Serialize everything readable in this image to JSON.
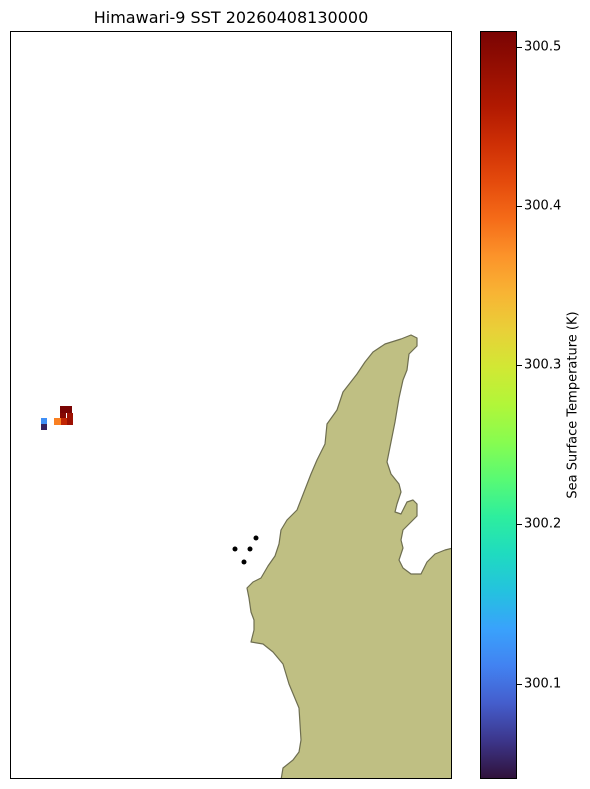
{
  "title": "Himawari-9 SST 20260408130000",
  "colors": {
    "land": "#bfbf83",
    "coastline": "#6e6e50",
    "station": "#000000",
    "frame": "#000000"
  },
  "colorbar": {
    "label": "Sea Surface Temperature (K)",
    "colormap": "turbo",
    "range": [
      300.04,
      300.51
    ],
    "ticks": [
      {
        "value": 300.1,
        "label": "300.1"
      },
      {
        "value": 300.2,
        "label": "300.2"
      },
      {
        "value": 300.3,
        "label": "300.3"
      },
      {
        "value": 300.4,
        "label": "300.4"
      },
      {
        "value": 300.5,
        "label": "300.5"
      }
    ]
  },
  "sst_cells": [
    {
      "value": 300.51
    },
    {
      "value": 300.5
    },
    {
      "value": 300.38
    },
    {
      "value": 300.45
    },
    {
      "value": 300.48
    },
    {
      "value": 300.12
    },
    {
      "value": 300.05
    }
  ],
  "stations_count": 4
}
